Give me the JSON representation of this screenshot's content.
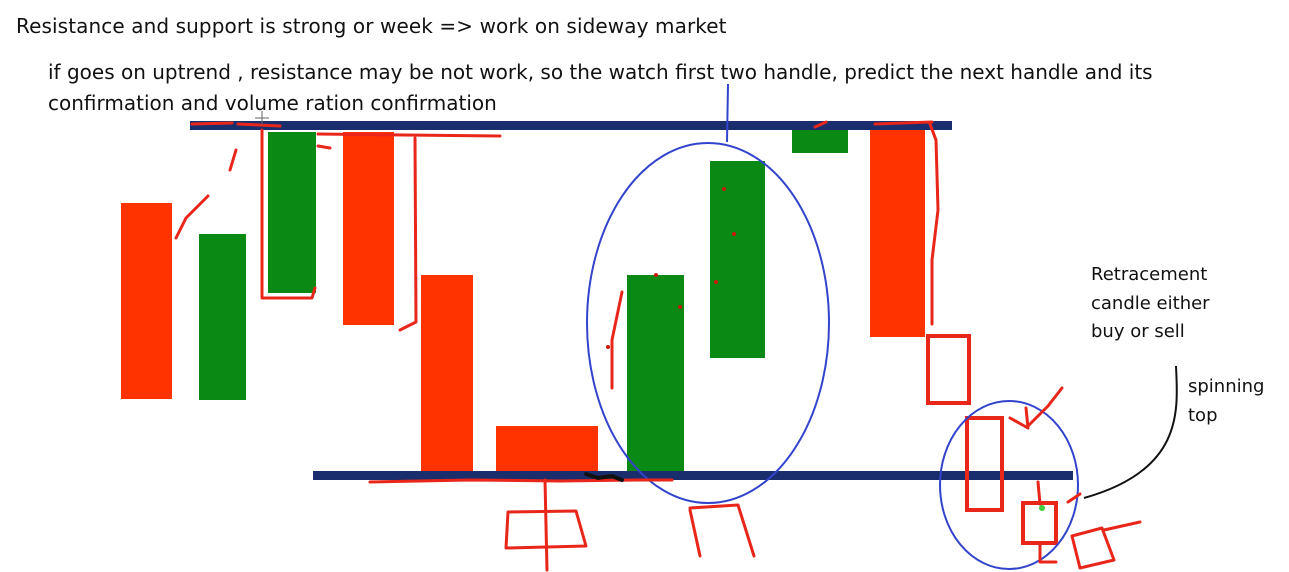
{
  "notes": {
    "title": "Resistance and support is strong or week => work on sideway market",
    "line1": "if goes on uptrend , resistance may be not work, so the watch first two handle, predict the next handle and its",
    "line2": "confirmation and volume ration confirmation",
    "retracement": [
      "Retracement",
      "candle either",
      "buy or sell"
    ],
    "spinning": [
      "spinning",
      "top"
    ]
  },
  "colors": {
    "bullish": "#0a8a14",
    "bearish": "#ff3300",
    "level_line": "#1a2e6e",
    "circle": "#3344cc",
    "ink_red": "#e8261a",
    "ink_black": "#111111"
  },
  "levels": {
    "resistance": "resistance",
    "support": "support"
  }
}
